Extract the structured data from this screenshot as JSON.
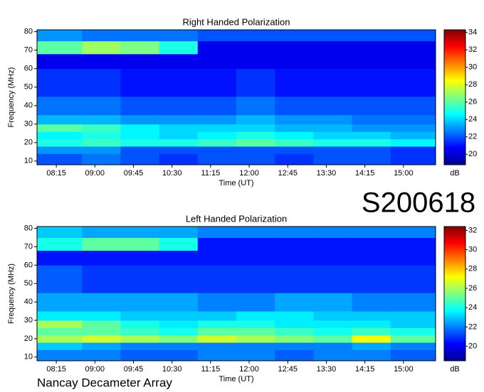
{
  "chart_data": [
    {
      "type": "heatmap",
      "title": "Right Handed Polarization",
      "x_label": "Time (UT)",
      "y_label": "Frequency (MHz)",
      "colorbar_label": "dB",
      "colormap": "jet",
      "x_edges": [
        7.875,
        8.75,
        9.5,
        10.25,
        11,
        11.75,
        12.5,
        13.25,
        14,
        14.75,
        15.625
      ],
      "y_edges": [
        8,
        14,
        18,
        22,
        26,
        30,
        35,
        45,
        60,
        68,
        75,
        81
      ],
      "values": [
        [
          22,
          22.5,
          22,
          21.5,
          22,
          22,
          21.5,
          22,
          22,
          21.5
        ],
        [
          23,
          23,
          22,
          22,
          22,
          22,
          22,
          22,
          22,
          21.5
        ],
        [
          25,
          25.5,
          25,
          25,
          25.5,
          26,
          25.5,
          25,
          25,
          24.5
        ],
        [
          24.5,
          25,
          24.5,
          24,
          24.5,
          25,
          24.5,
          24,
          24,
          23.5
        ],
        [
          26,
          25.5,
          24.5,
          24,
          24,
          24,
          23.5,
          23.5,
          23,
          23
        ],
        [
          23.5,
          23.5,
          23,
          23,
          23,
          23.5,
          23,
          23,
          22.5,
          22.5
        ],
        [
          22.5,
          22.5,
          22,
          22,
          22,
          22.5,
          22,
          22,
          22,
          22
        ],
        [
          21.5,
          21.5,
          21,
          21,
          21,
          21.5,
          21,
          21,
          21,
          21
        ],
        [
          20.5,
          20.5,
          20.5,
          20.5,
          20.5,
          20.5,
          20.5,
          20.5,
          20.5,
          20.5
        ],
        [
          26,
          27,
          26.5,
          25,
          20.5,
          20.5,
          20.5,
          20.5,
          20.5,
          20.5
        ],
        [
          23,
          22.5,
          22.5,
          22.5,
          22,
          22,
          22,
          22,
          22,
          22
        ]
      ],
      "xlim": [
        7.875,
        15.625
      ],
      "xticks": [
        {
          "value": 8.25,
          "label": "08:15"
        },
        {
          "value": 9,
          "label": "09:00"
        },
        {
          "value": 9.75,
          "label": "09:45"
        },
        {
          "value": 10.5,
          "label": "10:30"
        },
        {
          "value": 11.25,
          "label": "11:15"
        },
        {
          "value": 12,
          "label": "12:00"
        },
        {
          "value": 12.75,
          "label": "12:45"
        },
        {
          "value": 13.5,
          "label": "13:30"
        },
        {
          "value": 14.25,
          "label": "14:15"
        },
        {
          "value": 15,
          "label": "15:00"
        }
      ],
      "ylim": [
        8,
        81
      ],
      "yticks": [
        10,
        20,
        30,
        40,
        50,
        60,
        70,
        80
      ],
      "clim": [
        18.8,
        34.3
      ],
      "cticks": [
        20,
        22,
        24,
        26,
        28,
        30,
        32,
        34
      ]
    },
    {
      "type": "heatmap",
      "title": "Left Handed Polarization",
      "x_label": "Time (UT)",
      "y_label": "Frequency (MHz)",
      "colorbar_label": "dB",
      "colormap": "jet",
      "x_edges": [
        7.875,
        8.75,
        9.5,
        10.25,
        11,
        11.75,
        12.5,
        13.25,
        14,
        14.75,
        15.625
      ],
      "y_edges": [
        8,
        14,
        18,
        22,
        26,
        30,
        35,
        45,
        60,
        68,
        75,
        81
      ],
      "values": [
        [
          22,
          22,
          21.5,
          21.5,
          22,
          22,
          21.5,
          22,
          22,
          21.5
        ],
        [
          23,
          22.5,
          22,
          22,
          22,
          22,
          22,
          22,
          22.5,
          22
        ],
        [
          26,
          26.5,
          26,
          25.5,
          26.5,
          26,
          25.5,
          25,
          27,
          25
        ],
        [
          25,
          25,
          24.5,
          24,
          25,
          25,
          24.5,
          24,
          24.5,
          24
        ],
        [
          26,
          25,
          24,
          23.5,
          24,
          24,
          23.5,
          23.5,
          23.5,
          23
        ],
        [
          23.5,
          23.5,
          23,
          23,
          23,
          23.5,
          23.5,
          23,
          23,
          23
        ],
        [
          22.5,
          22.5,
          22.5,
          22.5,
          22,
          22,
          22.5,
          22.5,
          22,
          22
        ],
        [
          21.5,
          21,
          21,
          21,
          21,
          21,
          21,
          21,
          21,
          21
        ],
        [
          20.5,
          20.5,
          20.5,
          20.5,
          20.5,
          20.5,
          20.5,
          20.5,
          20.5,
          20.5
        ],
        [
          24,
          25,
          25,
          24,
          20.5,
          20.5,
          20.5,
          20.5,
          20.5,
          20.5
        ],
        [
          23,
          22.5,
          22.5,
          22.5,
          22,
          22,
          22,
          22,
          22,
          22
        ]
      ],
      "xlim": [
        7.875,
        15.625
      ],
      "xticks": [
        {
          "value": 8.25,
          "label": "08:15"
        },
        {
          "value": 9,
          "label": "09:00"
        },
        {
          "value": 9.75,
          "label": "09:45"
        },
        {
          "value": 10.5,
          "label": "10:30"
        },
        {
          "value": 11.25,
          "label": "11:15"
        },
        {
          "value": 12,
          "label": "12:00"
        },
        {
          "value": 12.75,
          "label": "12:45"
        },
        {
          "value": 13.5,
          "label": "13:30"
        },
        {
          "value": 14.25,
          "label": "14:15"
        },
        {
          "value": 15,
          "label": "15:00"
        }
      ],
      "ylim": [
        8,
        81
      ],
      "yticks": [
        10,
        20,
        30,
        40,
        50,
        60,
        70,
        80
      ],
      "clim": [
        18.5,
        32.4
      ],
      "cticks": [
        20,
        22,
        24,
        26,
        28,
        30,
        32
      ]
    }
  ],
  "annotations": {
    "observation": "S200618",
    "source": "Nancay Decameter Array"
  }
}
